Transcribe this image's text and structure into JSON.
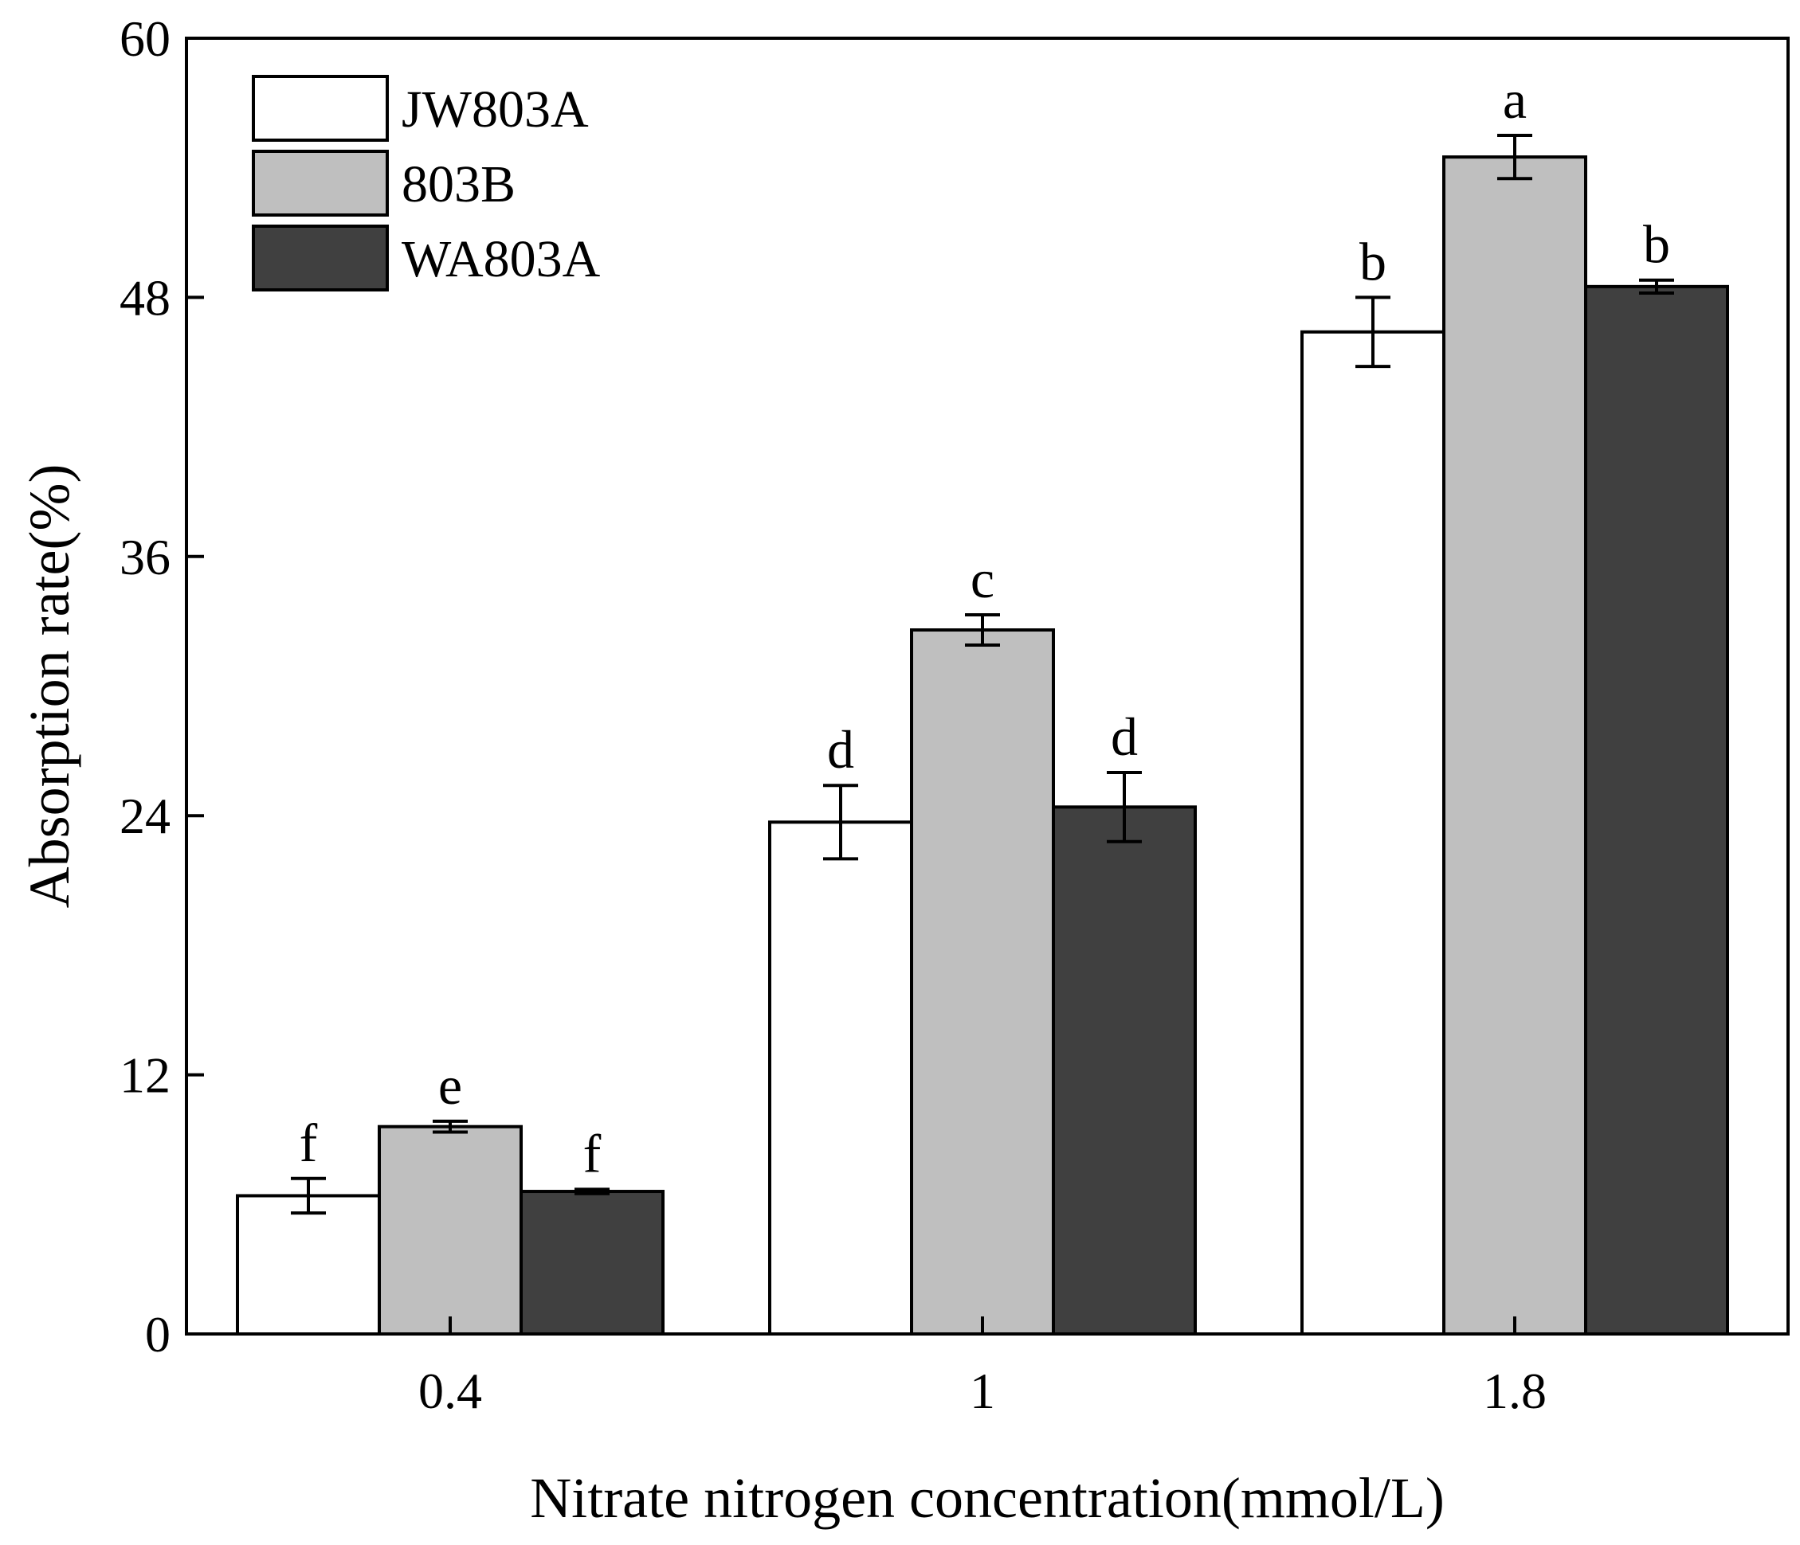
{
  "chart_data": {
    "type": "bar",
    "title": "",
    "xlabel": "Nitrate nitrogen concentration(mmol/L)",
    "ylabel": "Absorption rate(%)",
    "ylim": [
      0,
      60
    ],
    "yticks": [
      "0",
      "12",
      "24",
      "36",
      "48",
      "60"
    ],
    "categories": [
      "0.4",
      "1",
      "1.8"
    ],
    "grid": false,
    "legend_position": "top-left",
    "series": [
      {
        "name": "JW803A",
        "color": "#ffffff",
        "values": [
          6.4,
          23.7,
          46.4
        ],
        "errors": [
          0.8,
          1.7,
          1.6
        ],
        "letters": [
          "f",
          "d",
          "b"
        ]
      },
      {
        "name": "803B",
        "color": "#bfbfbf",
        "values": [
          9.6,
          32.6,
          54.5
        ],
        "errors": [
          0.25,
          0.7,
          1.0
        ],
        "letters": [
          "e",
          "c",
          "a"
        ]
      },
      {
        "name": "WA803A",
        "color": "#404040",
        "values": [
          6.6,
          24.4,
          48.5
        ],
        "errors": [
          0.1,
          1.6,
          0.3
        ],
        "letters": [
          "f",
          "d",
          "b"
        ]
      }
    ]
  }
}
